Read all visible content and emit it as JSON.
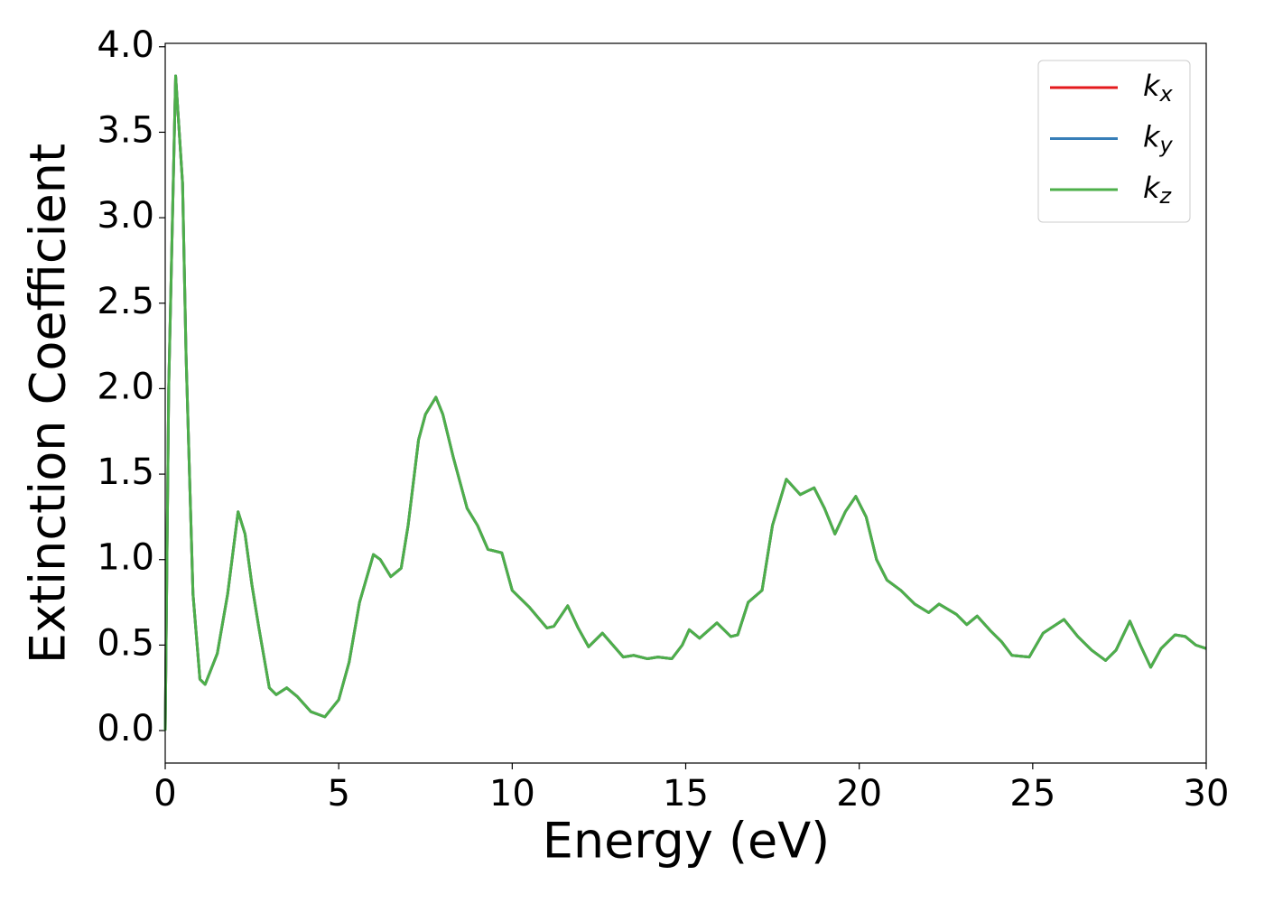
{
  "chart_data": {
    "type": "line",
    "xlabel": "Energy (eV)",
    "ylabel": "Extinction Coefficient",
    "x": [
      0,
      0.1,
      0.3,
      0.5,
      0.6,
      0.8,
      1.0,
      1.15,
      1.5,
      1.8,
      2.1,
      2.3,
      2.5,
      2.7,
      3.0,
      3.2,
      3.5,
      3.8,
      4.2,
      4.6,
      5.0,
      5.3,
      5.6,
      6.0,
      6.2,
      6.5,
      6.8,
      7.0,
      7.3,
      7.5,
      7.8,
      8.0,
      8.3,
      8.7,
      9.0,
      9.3,
      9.7,
      10.0,
      10.5,
      11.0,
      11.2,
      11.6,
      11.9,
      12.2,
      12.6,
      12.9,
      13.2,
      13.5,
      13.9,
      14.2,
      14.6,
      14.9,
      15.1,
      15.4,
      15.9,
      16.3,
      16.5,
      16.8,
      17.2,
      17.5,
      17.9,
      18.3,
      18.7,
      19.0,
      19.3,
      19.6,
      19.9,
      20.2,
      20.5,
      20.8,
      21.2,
      21.6,
      22.0,
      22.3,
      22.8,
      23.1,
      23.4,
      23.8,
      24.1,
      24.4,
      24.9,
      25.3,
      25.9,
      26.3,
      26.7,
      27.1,
      27.4,
      27.8,
      28.1,
      28.4,
      28.7,
      29.1,
      29.4,
      29.7,
      30.0
    ],
    "series": [
      {
        "name": "k_x",
        "color": "#e41a1c",
        "values": [
          0,
          2.0,
          3.83,
          3.2,
          2.2,
          0.8,
          0.3,
          0.27,
          0.45,
          0.8,
          1.28,
          1.15,
          0.85,
          0.6,
          0.25,
          0.21,
          0.25,
          0.2,
          0.11,
          0.08,
          0.18,
          0.4,
          0.75,
          1.03,
          1.0,
          0.9,
          0.95,
          1.2,
          1.7,
          1.85,
          1.95,
          1.85,
          1.6,
          1.3,
          1.2,
          1.06,
          1.04,
          0.82,
          0.72,
          0.6,
          0.61,
          0.73,
          0.6,
          0.49,
          0.57,
          0.5,
          0.43,
          0.44,
          0.42,
          0.43,
          0.42,
          0.5,
          0.59,
          0.54,
          0.63,
          0.55,
          0.56,
          0.75,
          0.82,
          1.2,
          1.47,
          1.38,
          1.42,
          1.3,
          1.15,
          1.28,
          1.37,
          1.25,
          1.0,
          0.88,
          0.82,
          0.74,
          0.69,
          0.74,
          0.68,
          0.62,
          0.67,
          0.58,
          0.52,
          0.44,
          0.43,
          0.57,
          0.65,
          0.55,
          0.47,
          0.41,
          0.47,
          0.64,
          0.5,
          0.37,
          0.48,
          0.56,
          0.55,
          0.5,
          0.48
        ]
      },
      {
        "name": "k_y",
        "color": "#377eb8",
        "values": [
          0,
          2.0,
          3.83,
          3.2,
          2.2,
          0.8,
          0.3,
          0.27,
          0.45,
          0.8,
          1.28,
          1.15,
          0.85,
          0.6,
          0.25,
          0.21,
          0.25,
          0.2,
          0.11,
          0.08,
          0.18,
          0.4,
          0.75,
          1.03,
          1.0,
          0.9,
          0.95,
          1.2,
          1.7,
          1.85,
          1.95,
          1.85,
          1.6,
          1.3,
          1.2,
          1.06,
          1.04,
          0.82,
          0.72,
          0.6,
          0.61,
          0.73,
          0.6,
          0.49,
          0.57,
          0.5,
          0.43,
          0.44,
          0.42,
          0.43,
          0.42,
          0.5,
          0.59,
          0.54,
          0.63,
          0.55,
          0.56,
          0.75,
          0.82,
          1.2,
          1.47,
          1.38,
          1.42,
          1.3,
          1.15,
          1.28,
          1.37,
          1.25,
          1.0,
          0.88,
          0.82,
          0.74,
          0.69,
          0.74,
          0.68,
          0.62,
          0.67,
          0.58,
          0.52,
          0.44,
          0.43,
          0.57,
          0.65,
          0.55,
          0.47,
          0.41,
          0.47,
          0.64,
          0.5,
          0.37,
          0.48,
          0.56,
          0.55,
          0.5,
          0.48
        ]
      },
      {
        "name": "k_z",
        "color": "#4daf4a",
        "values": [
          0,
          2.0,
          3.83,
          3.2,
          2.2,
          0.8,
          0.3,
          0.27,
          0.45,
          0.8,
          1.28,
          1.15,
          0.85,
          0.6,
          0.25,
          0.21,
          0.25,
          0.2,
          0.11,
          0.08,
          0.18,
          0.4,
          0.75,
          1.03,
          1.0,
          0.9,
          0.95,
          1.2,
          1.7,
          1.85,
          1.95,
          1.85,
          1.6,
          1.3,
          1.2,
          1.06,
          1.04,
          0.82,
          0.72,
          0.6,
          0.61,
          0.73,
          0.6,
          0.49,
          0.57,
          0.5,
          0.43,
          0.44,
          0.42,
          0.43,
          0.42,
          0.5,
          0.59,
          0.54,
          0.63,
          0.55,
          0.56,
          0.75,
          0.82,
          1.2,
          1.47,
          1.38,
          1.42,
          1.3,
          1.15,
          1.28,
          1.37,
          1.25,
          1.0,
          0.88,
          0.82,
          0.74,
          0.69,
          0.74,
          0.68,
          0.62,
          0.67,
          0.58,
          0.52,
          0.44,
          0.43,
          0.57,
          0.65,
          0.55,
          0.47,
          0.41,
          0.47,
          0.64,
          0.5,
          0.37,
          0.48,
          0.56,
          0.55,
          0.5,
          0.48
        ]
      }
    ],
    "xlim": [
      0,
      30
    ],
    "xticks": [
      0,
      5,
      10,
      15,
      20,
      25,
      30
    ],
    "ylim": [
      -0.19,
      4.02
    ],
    "yticks": [
      {
        "value": 0,
        "label": "0.0"
      },
      {
        "value": 0.5,
        "label": "0.5"
      },
      {
        "value": 1,
        "label": "1.0"
      },
      {
        "value": 1.5,
        "label": "1.5"
      },
      {
        "value": 2,
        "label": "2.0"
      },
      {
        "value": 2.5,
        "label": "2.5"
      },
      {
        "value": 3,
        "label": "3.0"
      },
      {
        "value": 3.5,
        "label": "3.5"
      },
      {
        "value": 4,
        "label": "4.0"
      }
    ],
    "grid": false,
    "legend": "upper right"
  }
}
